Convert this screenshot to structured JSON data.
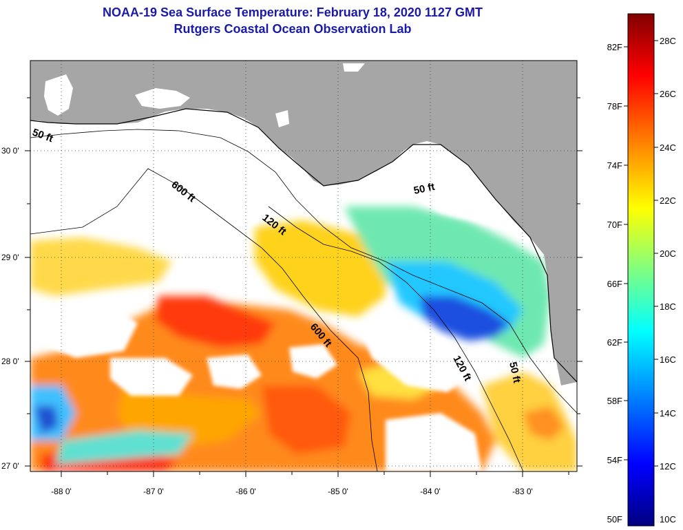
{
  "title": {
    "line1": "NOAA-19 Sea Surface Temperature:  February 18, 2020 1127 GMT",
    "line2": "Rutgers Coastal Ocean Observation Lab"
  },
  "map": {
    "lon_ticks": [
      "-88 0'",
      "-87 0'",
      "-86 0'",
      "-85 0'",
      "-84 0'",
      "-83 0'"
    ],
    "lat_ticks": [
      "30 0'",
      "29 0'",
      "28 0'",
      "27 0'"
    ],
    "contour_labels": [
      {
        "text": "50 ft"
      },
      {
        "text": "600 ft"
      },
      {
        "text": "120 ft"
      },
      {
        "text": "50 ft"
      },
      {
        "text": "600 ft"
      },
      {
        "text": "120 ft"
      },
      {
        "text": "50 ft"
      }
    ],
    "colors": {
      "land": "#a6a6a6",
      "cloud": "#ffffff",
      "frame": "#000000"
    }
  },
  "colorbar": {
    "fahrenheit_labels": [
      "82F",
      "78F",
      "74F",
      "70F",
      "66F",
      "62F",
      "58F",
      "54F",
      "50F"
    ],
    "celsius_labels": [
      "28C",
      "26C",
      "24C",
      "22C",
      "20C",
      "18C",
      "16C",
      "14C",
      "12C",
      "10C"
    ],
    "colors": [
      "#000080",
      "#0000ff",
      "#0080ff",
      "#00ffff",
      "#80ff80",
      "#ffff00",
      "#ff8000",
      "#ff0000",
      "#800000"
    ]
  }
}
